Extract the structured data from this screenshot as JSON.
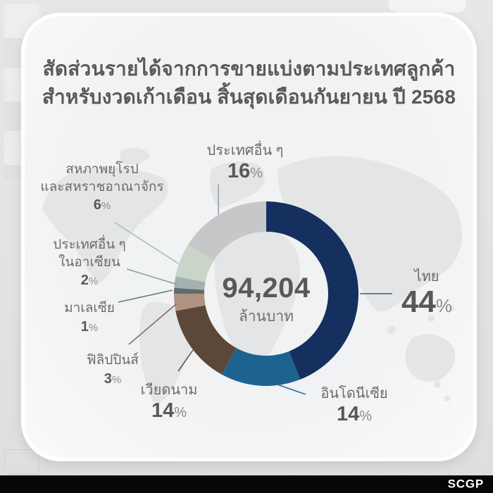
{
  "card": {
    "title_line1": "สัดส่วนรายได้จากการขายแบ่งตามประเทศลูกค้า",
    "title_line2": "สำหรับงวดเก้าเดือน สิ้นสุดเดือนกันยายน ปี 2568"
  },
  "percent_sign": "%",
  "brand": {
    "logo": "SCGP"
  },
  "chart_data": {
    "type": "pie",
    "subtype": "donut",
    "title": "สัดส่วนรายได้จากการขายแบ่งตามประเทศลูกค้า สำหรับงวดเก้าเดือน สิ้นสุดเดือนกันยายน ปี 2568",
    "center_total": {
      "value": 94204,
      "display": "94,204",
      "unit": "ล้านบาท"
    },
    "start_angle_deg": 0,
    "direction": "clockwise",
    "legend_position": "callouts-around-donut",
    "background": "faint world map",
    "segments": [
      {
        "name": "thailand",
        "label_lines": [
          "ไทย"
        ],
        "pct": 44,
        "pct_display": "44",
        "color": "#15305E",
        "line_color": "#4A5480"
      },
      {
        "name": "indonesia",
        "label_lines": [
          "อินโดนีเซีย"
        ],
        "pct": 14,
        "pct_display": "14",
        "color": "#1D6390",
        "line_color": "#2E6E9E"
      },
      {
        "name": "vietnam",
        "label_lines": [
          "เวียดนาม"
        ],
        "pct": 14,
        "pct_display": "14",
        "color": "#5C4838",
        "line_color": "#6B5442"
      },
      {
        "name": "philippines",
        "label_lines": [
          "ฟิลิปปินส์"
        ],
        "pct": 3,
        "pct_display": "3",
        "color": "#B09283",
        "line_color": "#8A6E5B"
      },
      {
        "name": "malaysia",
        "label_lines": [
          "มาเลเซีย"
        ],
        "pct": 1,
        "pct_display": "1",
        "color": "#5F6D6B",
        "line_color": "#6B7876"
      },
      {
        "name": "other_asean",
        "label_lines": [
          "ประเทศอื่น ๆ",
          "ในอาเซียน"
        ],
        "pct": 2,
        "pct_display": "2",
        "color": "#A3B1AF",
        "line_color": "#8F9D9B"
      },
      {
        "name": "eu_uk",
        "label_lines": [
          "สหภาพยุโรป",
          "และสหราชอาณาจักร"
        ],
        "pct": 6,
        "pct_display": "6",
        "color": "#C9D5C8",
        "line_color": "#A8BCA8"
      },
      {
        "name": "others",
        "label_lines": [
          "ประเทศอื่น ๆ"
        ],
        "pct": 16,
        "pct_display": "16",
        "color": "#C6C7C9",
        "line_color": "#9AA0A3"
      }
    ]
  }
}
